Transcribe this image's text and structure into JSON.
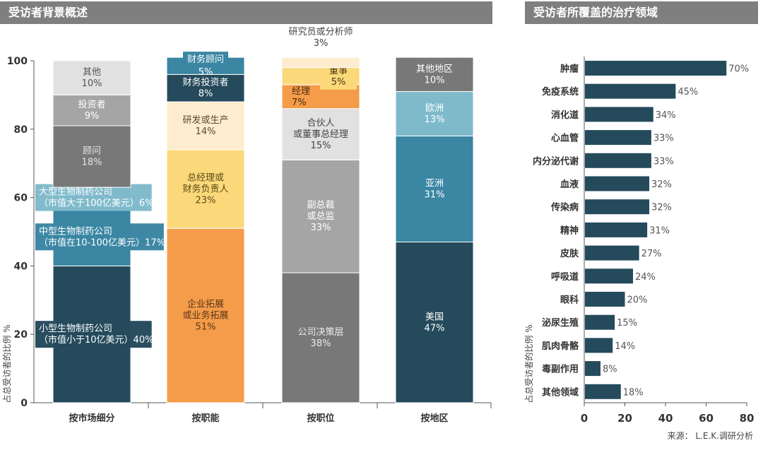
{
  "headers": {
    "left": "受访者背景概述",
    "right": "受访者所覆盖的治疗领域"
  },
  "source": "来源： L.E.K.调研分析",
  "chart_data": [
    {
      "type": "bar",
      "stacked": true,
      "ylabel": "占总受访者的比例 %",
      "ylim": [
        0,
        100
      ],
      "yticks": [
        0,
        20,
        40,
        60,
        80,
        100
      ],
      "categories": [
        "按市场细分",
        "按职能",
        "按职位",
        "按地区"
      ],
      "stacks": [
        {
          "category": "按市场细分",
          "segments": [
            {
              "label": [
                "小型生物制药公司",
                "（市值小于10亿美元）40%"
              ],
              "value": 40,
              "color": "#254a5c",
              "text_color": "#ffffff",
              "callout": true
            },
            {
              "label": [
                "中型生物制药公司",
                "（市值在10-100亿美元）17%"
              ],
              "value": 17,
              "color": "#3a86a3",
              "text_color": "#ffffff",
              "callout": true
            },
            {
              "label": [
                "大型生物制药公司",
                "（市值大于100亿美元）6%"
              ],
              "value": 6,
              "color": "#7fbacb",
              "text_color": "#ffffff",
              "callout": true
            },
            {
              "label": [
                "顾问",
                "18%"
              ],
              "value": 18,
              "color": "#787878",
              "text_color": "#e6e6e6"
            },
            {
              "label": [
                "投资者",
                "9%"
              ],
              "value": 9,
              "color": "#a5a5a5",
              "text_color": "#ffffff"
            },
            {
              "label": [
                "其他",
                "10%"
              ],
              "value": 10,
              "color": "#e1e1e1",
              "text_color": "#555555"
            }
          ]
        },
        {
          "category": "按职能",
          "segments": [
            {
              "label": [
                "企业拓展",
                "或业务拓展",
                "51%"
              ],
              "value": 51,
              "color": "#f49c4a",
              "text_color": "#5a3516"
            },
            {
              "label": [
                "总经理或",
                "财务负责人",
                "23%"
              ],
              "value": 23,
              "color": "#fbd97a",
              "text_color": "#5a4a16"
            },
            {
              "label": [
                "研发或生产",
                "14%"
              ],
              "value": 14,
              "color": "#fdeccd",
              "text_color": "#5a4a30"
            },
            {
              "label": [
                "财务投资者",
                "8%"
              ],
              "value": 8,
              "color": "#254a5c",
              "text_color": "#ffffff"
            },
            {
              "label": [
                "财务顾问",
                "5%"
              ],
              "value": 5,
              "color": "#3a86a3",
              "text_color": "#ffffff",
              "box": true
            }
          ]
        },
        {
          "category": "按职位",
          "segments": [
            {
              "label": [
                "公司决策层",
                "38%"
              ],
              "value": 38,
              "color": "#787878",
              "text_color": "#ececec"
            },
            {
              "label": [
                "副总裁",
                "或总监",
                "33%"
              ],
              "value": 33,
              "color": "#a5a5a5",
              "text_color": "#ffffff"
            },
            {
              "label": [
                "合伙人",
                "或董事总经理",
                "15%"
              ],
              "value": 15,
              "color": "#e1e1e1",
              "text_color": "#444444"
            },
            {
              "label": [
                "经理",
                "7%"
              ],
              "value": 7,
              "color": "#f49c4a",
              "text_color": "#4a2a10",
              "align": "left"
            },
            {
              "label": [
                "董事",
                "5%"
              ],
              "value": 5,
              "color": "#fbd97a",
              "text_color": "#4a3a10",
              "align": "right-box"
            },
            {
              "label": [
                "研究员或分析师",
                "3%"
              ],
              "value": 3,
              "color": "#fdeccd",
              "text_color": "#555555",
              "above": true
            }
          ]
        },
        {
          "category": "按地区",
          "segments": [
            {
              "label": [
                "美国",
                "47%"
              ],
              "value": 47,
              "color": "#254a5c",
              "text_color": "#ffffff"
            },
            {
              "label": [
                "亚洲",
                "31%"
              ],
              "value": 31,
              "color": "#3a86a3",
              "text_color": "#ffffff"
            },
            {
              "label": [
                "欧洲",
                "13%"
              ],
              "value": 13,
              "color": "#7fbacb",
              "text_color": "#ffffff"
            },
            {
              "label": [
                "其他地区",
                "10%"
              ],
              "value": 10,
              "color": "#787878",
              "text_color": "#ffffff"
            }
          ]
        }
      ]
    },
    {
      "type": "bar",
      "orientation": "horizontal",
      "ylabel": "占总受访者的比例 %",
      "xlim": [
        0,
        80
      ],
      "xticks": [
        0,
        20,
        40,
        60,
        80
      ],
      "bar_color": "#254a5c",
      "categories": [
        "肿瘤",
        "免疫系统",
        "消化道",
        "心血管",
        "内分泌代谢",
        "血液",
        "传染病",
        "精神",
        "皮肤",
        "呼吸道",
        "眼科",
        "泌尿生殖",
        "肌肉骨骼",
        "毒副作用",
        "其他领域"
      ],
      "values": [
        70,
        45,
        34,
        33,
        33,
        32,
        32,
        31,
        27,
        24,
        20,
        15,
        14,
        8,
        18
      ],
      "value_labels": [
        "70%",
        "45%",
        "34%",
        "33%",
        "33%",
        "32%",
        "32%",
        "31%",
        "27%",
        "24%",
        "20%",
        "15%",
        "14%",
        "8%",
        "18%"
      ]
    }
  ]
}
